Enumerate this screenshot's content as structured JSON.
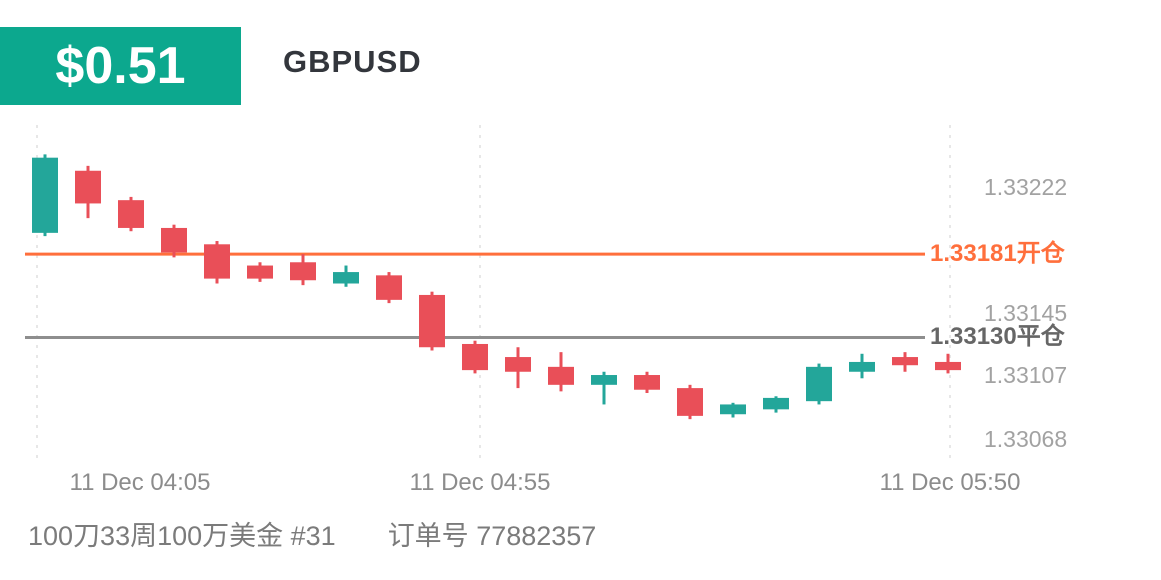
{
  "header": {
    "profit_badge": "$0.51",
    "symbol": "GBPUSD",
    "badge_color": "#0CA88E"
  },
  "chart_data": {
    "type": "candlestick",
    "title": "GBPUSD",
    "ylim": [
      1.33055,
      1.3326
    ],
    "y_ticks": [
      "1.33222",
      "1.33145",
      "1.33107",
      "1.33068"
    ],
    "x_labels": [
      "11 Dec  04:05",
      "11 Dec  04:55",
      "11 Dec  05:50"
    ],
    "grid": "vertical-dashed",
    "legend": "none",
    "up_color": "#23A69A",
    "down_color": "#E94F58",
    "open_line": {
      "price": 1.33181,
      "label": "1.33181开仓",
      "color": "#FF6F3C"
    },
    "close_line": {
      "price": 1.3313,
      "label": "1.33130平仓",
      "color": "#8E8E8E",
      "label_color": "#666666"
    },
    "candles": [
      {
        "o": 1.33194,
        "h": 1.33242,
        "l": 1.33192,
        "c": 1.3324
      },
      {
        "o": 1.33232,
        "h": 1.33235,
        "l": 1.33203,
        "c": 1.33212
      },
      {
        "o": 1.33214,
        "h": 1.33216,
        "l": 1.33195,
        "c": 1.33197
      },
      {
        "o": 1.33197,
        "h": 1.33199,
        "l": 1.33179,
        "c": 1.33182
      },
      {
        "o": 1.33187,
        "h": 1.33189,
        "l": 1.33163,
        "c": 1.33166
      },
      {
        "o": 1.33174,
        "h": 1.33176,
        "l": 1.33164,
        "c": 1.33166
      },
      {
        "o": 1.33176,
        "h": 1.33181,
        "l": 1.33162,
        "c": 1.33165
      },
      {
        "o": 1.33163,
        "h": 1.33174,
        "l": 1.33161,
        "c": 1.3317
      },
      {
        "o": 1.33168,
        "h": 1.3317,
        "l": 1.33151,
        "c": 1.33153
      },
      {
        "o": 1.33156,
        "h": 1.33158,
        "l": 1.33122,
        "c": 1.33124
      },
      {
        "o": 1.33126,
        "h": 1.33128,
        "l": 1.33108,
        "c": 1.3311
      },
      {
        "o": 1.33118,
        "h": 1.33124,
        "l": 1.33099,
        "c": 1.33109
      },
      {
        "o": 1.33112,
        "h": 1.33121,
        "l": 1.33097,
        "c": 1.33101
      },
      {
        "o": 1.33101,
        "h": 1.33109,
        "l": 1.33089,
        "c": 1.33107
      },
      {
        "o": 1.33107,
        "h": 1.33109,
        "l": 1.33096,
        "c": 1.33098
      },
      {
        "o": 1.33099,
        "h": 1.33101,
        "l": 1.3308,
        "c": 1.33082
      },
      {
        "o": 1.33083,
        "h": 1.3309,
        "l": 1.33081,
        "c": 1.33089
      },
      {
        "o": 1.33086,
        "h": 1.33094,
        "l": 1.33084,
        "c": 1.33093
      },
      {
        "o": 1.33091,
        "h": 1.33114,
        "l": 1.33089,
        "c": 1.33112
      },
      {
        "o": 1.33109,
        "h": 1.3312,
        "l": 1.33105,
        "c": 1.33115
      },
      {
        "o": 1.33118,
        "h": 1.33121,
        "l": 1.33109,
        "c": 1.33113
      },
      {
        "o": 1.33115,
        "h": 1.3312,
        "l": 1.33108,
        "c": 1.3311
      }
    ]
  },
  "footer": {
    "position_title": "100刀33周100万美金 #31",
    "order_number": "订单号 77882357"
  }
}
